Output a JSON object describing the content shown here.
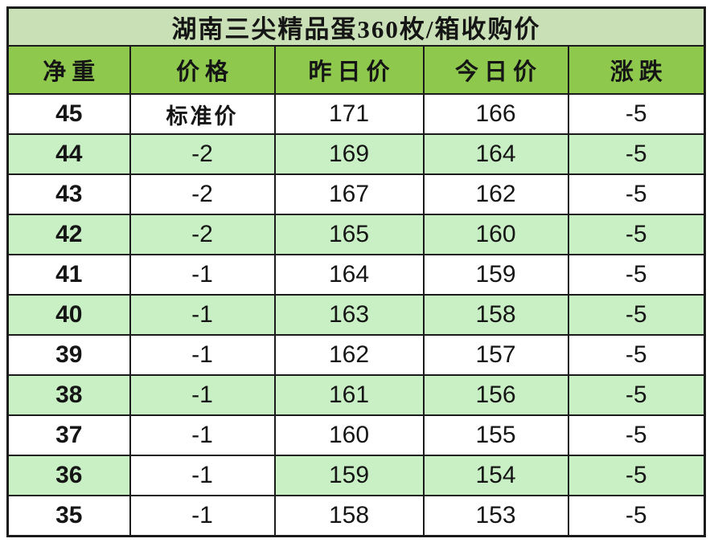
{
  "table": {
    "title": "湖南三尖精品蛋360枚/箱收购价",
    "columns": [
      "净重",
      "价格",
      "昨日价",
      "今日价",
      "涨跌"
    ],
    "rows": [
      {
        "cells": [
          "45",
          "标准价",
          "171",
          "166",
          "-5"
        ],
        "shaded": false,
        "unshaded_cells": []
      },
      {
        "cells": [
          "44",
          "-2",
          "169",
          "164",
          "-5"
        ],
        "shaded": true,
        "unshaded_cells": []
      },
      {
        "cells": [
          "43",
          "-2",
          "167",
          "162",
          "-5"
        ],
        "shaded": false,
        "unshaded_cells": []
      },
      {
        "cells": [
          "42",
          "-2",
          "165",
          "160",
          "-5"
        ],
        "shaded": true,
        "unshaded_cells": []
      },
      {
        "cells": [
          "41",
          "-1",
          "164",
          "159",
          "-5"
        ],
        "shaded": false,
        "unshaded_cells": []
      },
      {
        "cells": [
          "40",
          "-1",
          "163",
          "158",
          "-5"
        ],
        "shaded": true,
        "unshaded_cells": []
      },
      {
        "cells": [
          "39",
          "-1",
          "162",
          "157",
          "-5"
        ],
        "shaded": false,
        "unshaded_cells": []
      },
      {
        "cells": [
          "38",
          "-1",
          "161",
          "156",
          "-5"
        ],
        "shaded": true,
        "unshaded_cells": []
      },
      {
        "cells": [
          "37",
          "-1",
          "160",
          "155",
          "-5"
        ],
        "shaded": false,
        "unshaded_cells": []
      },
      {
        "cells": [
          "36",
          "-1",
          "159",
          "154",
          "-5"
        ],
        "shaded": true,
        "unshaded_cells": [
          1
        ]
      },
      {
        "cells": [
          "35",
          "-1",
          "158",
          "153",
          "-5"
        ],
        "shaded": false,
        "unshaded_cells": []
      }
    ]
  },
  "colors": {
    "title_bg": "#c9dfb5",
    "header_bg": "#8ec94e",
    "shaded_row_bg": "#c9efc4",
    "unshaded_row_bg": "#ffffff",
    "border": "#1b1b1b",
    "text": "#151515"
  }
}
